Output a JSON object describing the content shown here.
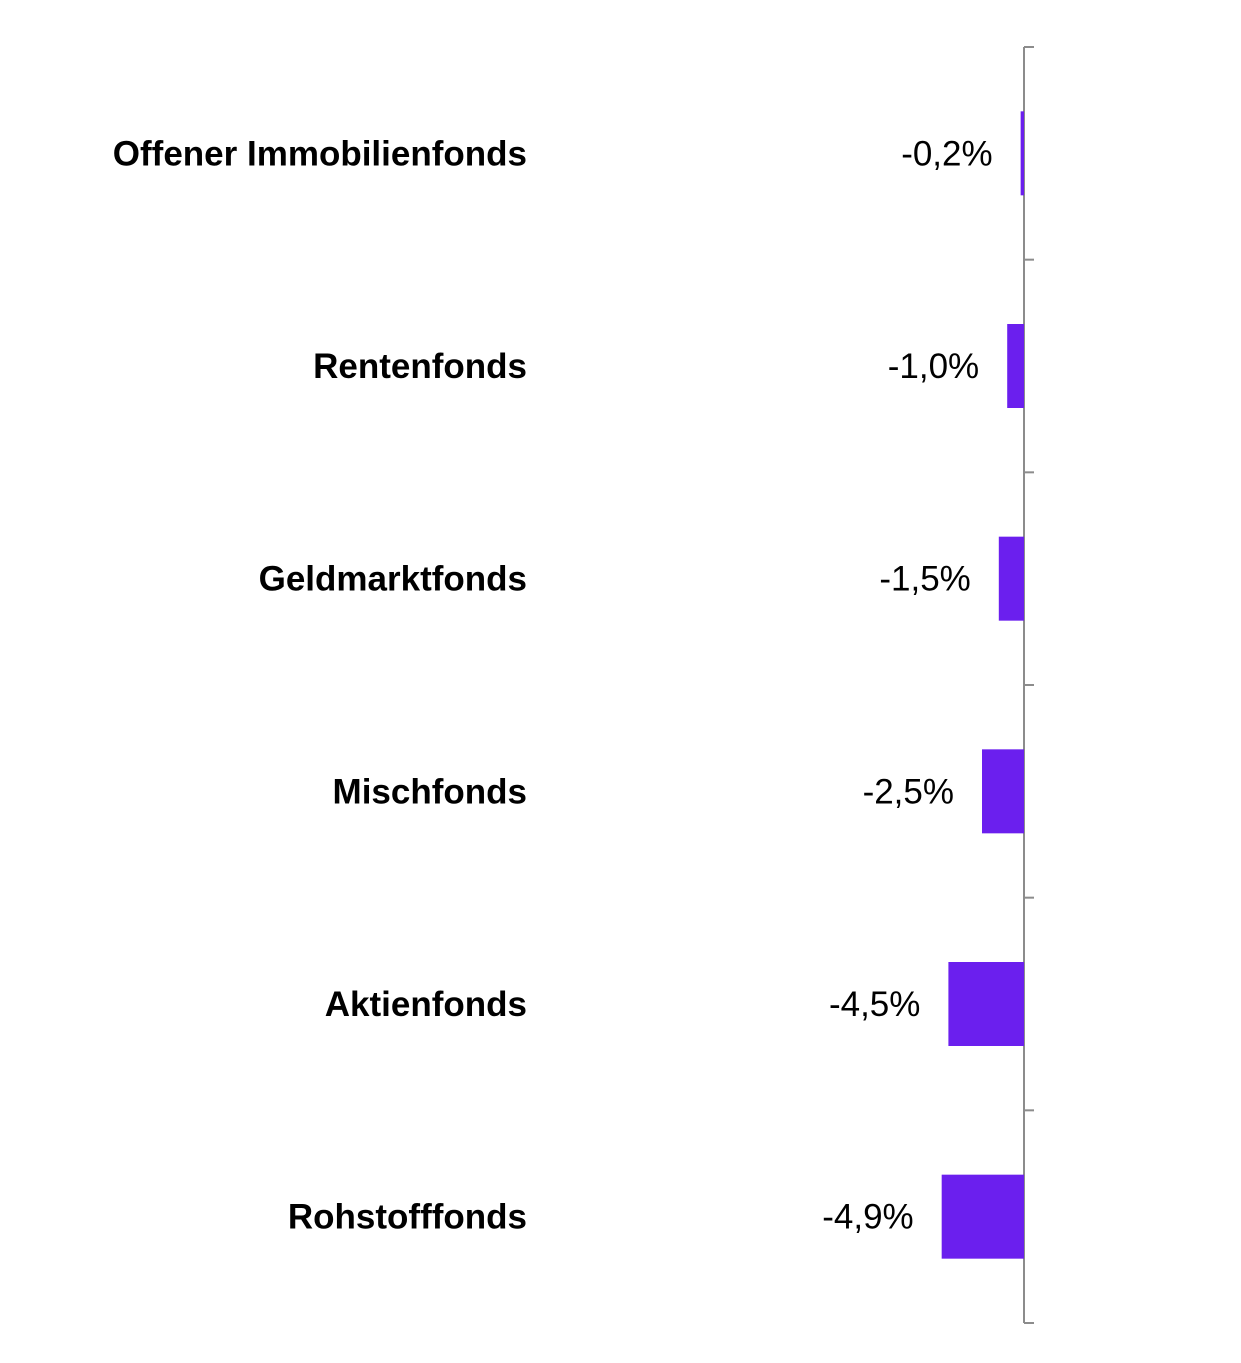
{
  "chart_data": {
    "type": "bar",
    "orientation": "horizontal",
    "categories": [
      "Offener Immobilienfonds",
      "Rentenfonds",
      "Geldmarktfonds",
      "Mischfonds",
      "Aktienfonds",
      "Rohstofffonds"
    ],
    "values": [
      -0.2,
      -1.0,
      -1.5,
      -2.5,
      -4.5,
      -4.9
    ],
    "data_labels": [
      "-0,2%",
      "-1,0%",
      "-1,5%",
      "-2,5%",
      "-4,5%",
      "-4,9%"
    ],
    "unit": "%",
    "title": "",
    "xlabel": "",
    "ylabel": "",
    "grid": false,
    "legend": "none",
    "bar_color": "#6b1fee",
    "axis_color": "#8c8c8c"
  }
}
